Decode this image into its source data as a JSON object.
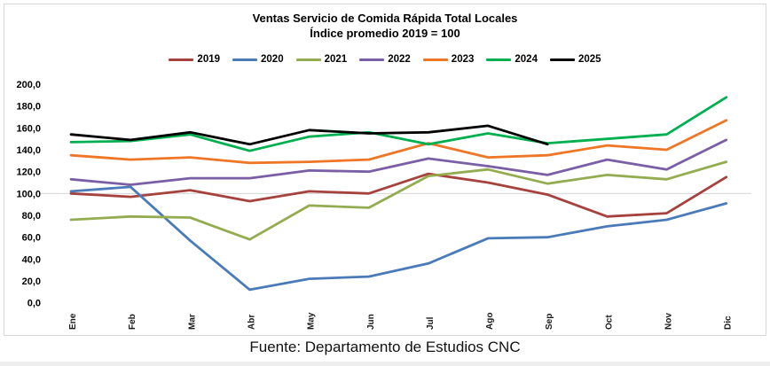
{
  "chart": {
    "title": "Ventas Servicio de Comida Rápida Total Locales",
    "subtitle": "Índice promedio 2019 = 100",
    "footer": "Fuente: Departamento de Estudios CNC"
  },
  "chart_data": {
    "type": "line",
    "title": "Ventas Servicio de Comida Rápida Total Locales",
    "subtitle": "Índice promedio 2019 = 100",
    "categories": [
      "Ene",
      "Feb",
      "Mar",
      "Abr",
      "May",
      "Jun",
      "Jul",
      "Ago",
      "Sep",
      "Oct",
      "Nov",
      "Dic"
    ],
    "series": [
      {
        "name": "2019",
        "color": "#A6423E",
        "values": [
          100,
          97,
          103,
          93,
          102,
          100,
          118,
          110,
          99,
          79,
          82,
          115
        ]
      },
      {
        "name": "2020",
        "color": "#4A7BB8",
        "values": [
          102,
          106,
          57,
          12,
          22,
          24,
          36,
          59,
          60,
          70,
          76,
          91
        ]
      },
      {
        "name": "2021",
        "color": "#94AC50",
        "values": [
          76,
          79,
          78,
          58,
          89,
          87,
          116,
          122,
          109,
          117,
          113,
          129
        ]
      },
      {
        "name": "2022",
        "color": "#7A5EA6",
        "values": [
          113,
          108,
          114,
          114,
          121,
          120,
          132,
          125,
          117,
          131,
          122,
          149
        ]
      },
      {
        "name": "2023",
        "color": "#EE7625",
        "values": [
          135,
          131,
          133,
          128,
          129,
          131,
          146,
          133,
          135,
          144,
          140,
          167
        ]
      },
      {
        "name": "2024",
        "color": "#00B050",
        "values": [
          147,
          148,
          154,
          139,
          152,
          156,
          145,
          155,
          146,
          150,
          154,
          188
        ]
      },
      {
        "name": "2025",
        "color": "#000000",
        "values": [
          154,
          149,
          156,
          145,
          158,
          155,
          156,
          162,
          145,
          null,
          null,
          null
        ]
      }
    ],
    "ylim": [
      0,
      200
    ],
    "ytick_step": 20,
    "ytick_labels": [
      "0,0",
      "20,0",
      "40,0",
      "60,0",
      "80,0",
      "100,0",
      "120,0",
      "140,0",
      "160,0",
      "180,0",
      "200,0"
    ],
    "gridlines": "single horizontal gridline at y=100",
    "gridline_color": "#d6d6d6",
    "legend_position": "top",
    "x_label_rotation": -90
  }
}
